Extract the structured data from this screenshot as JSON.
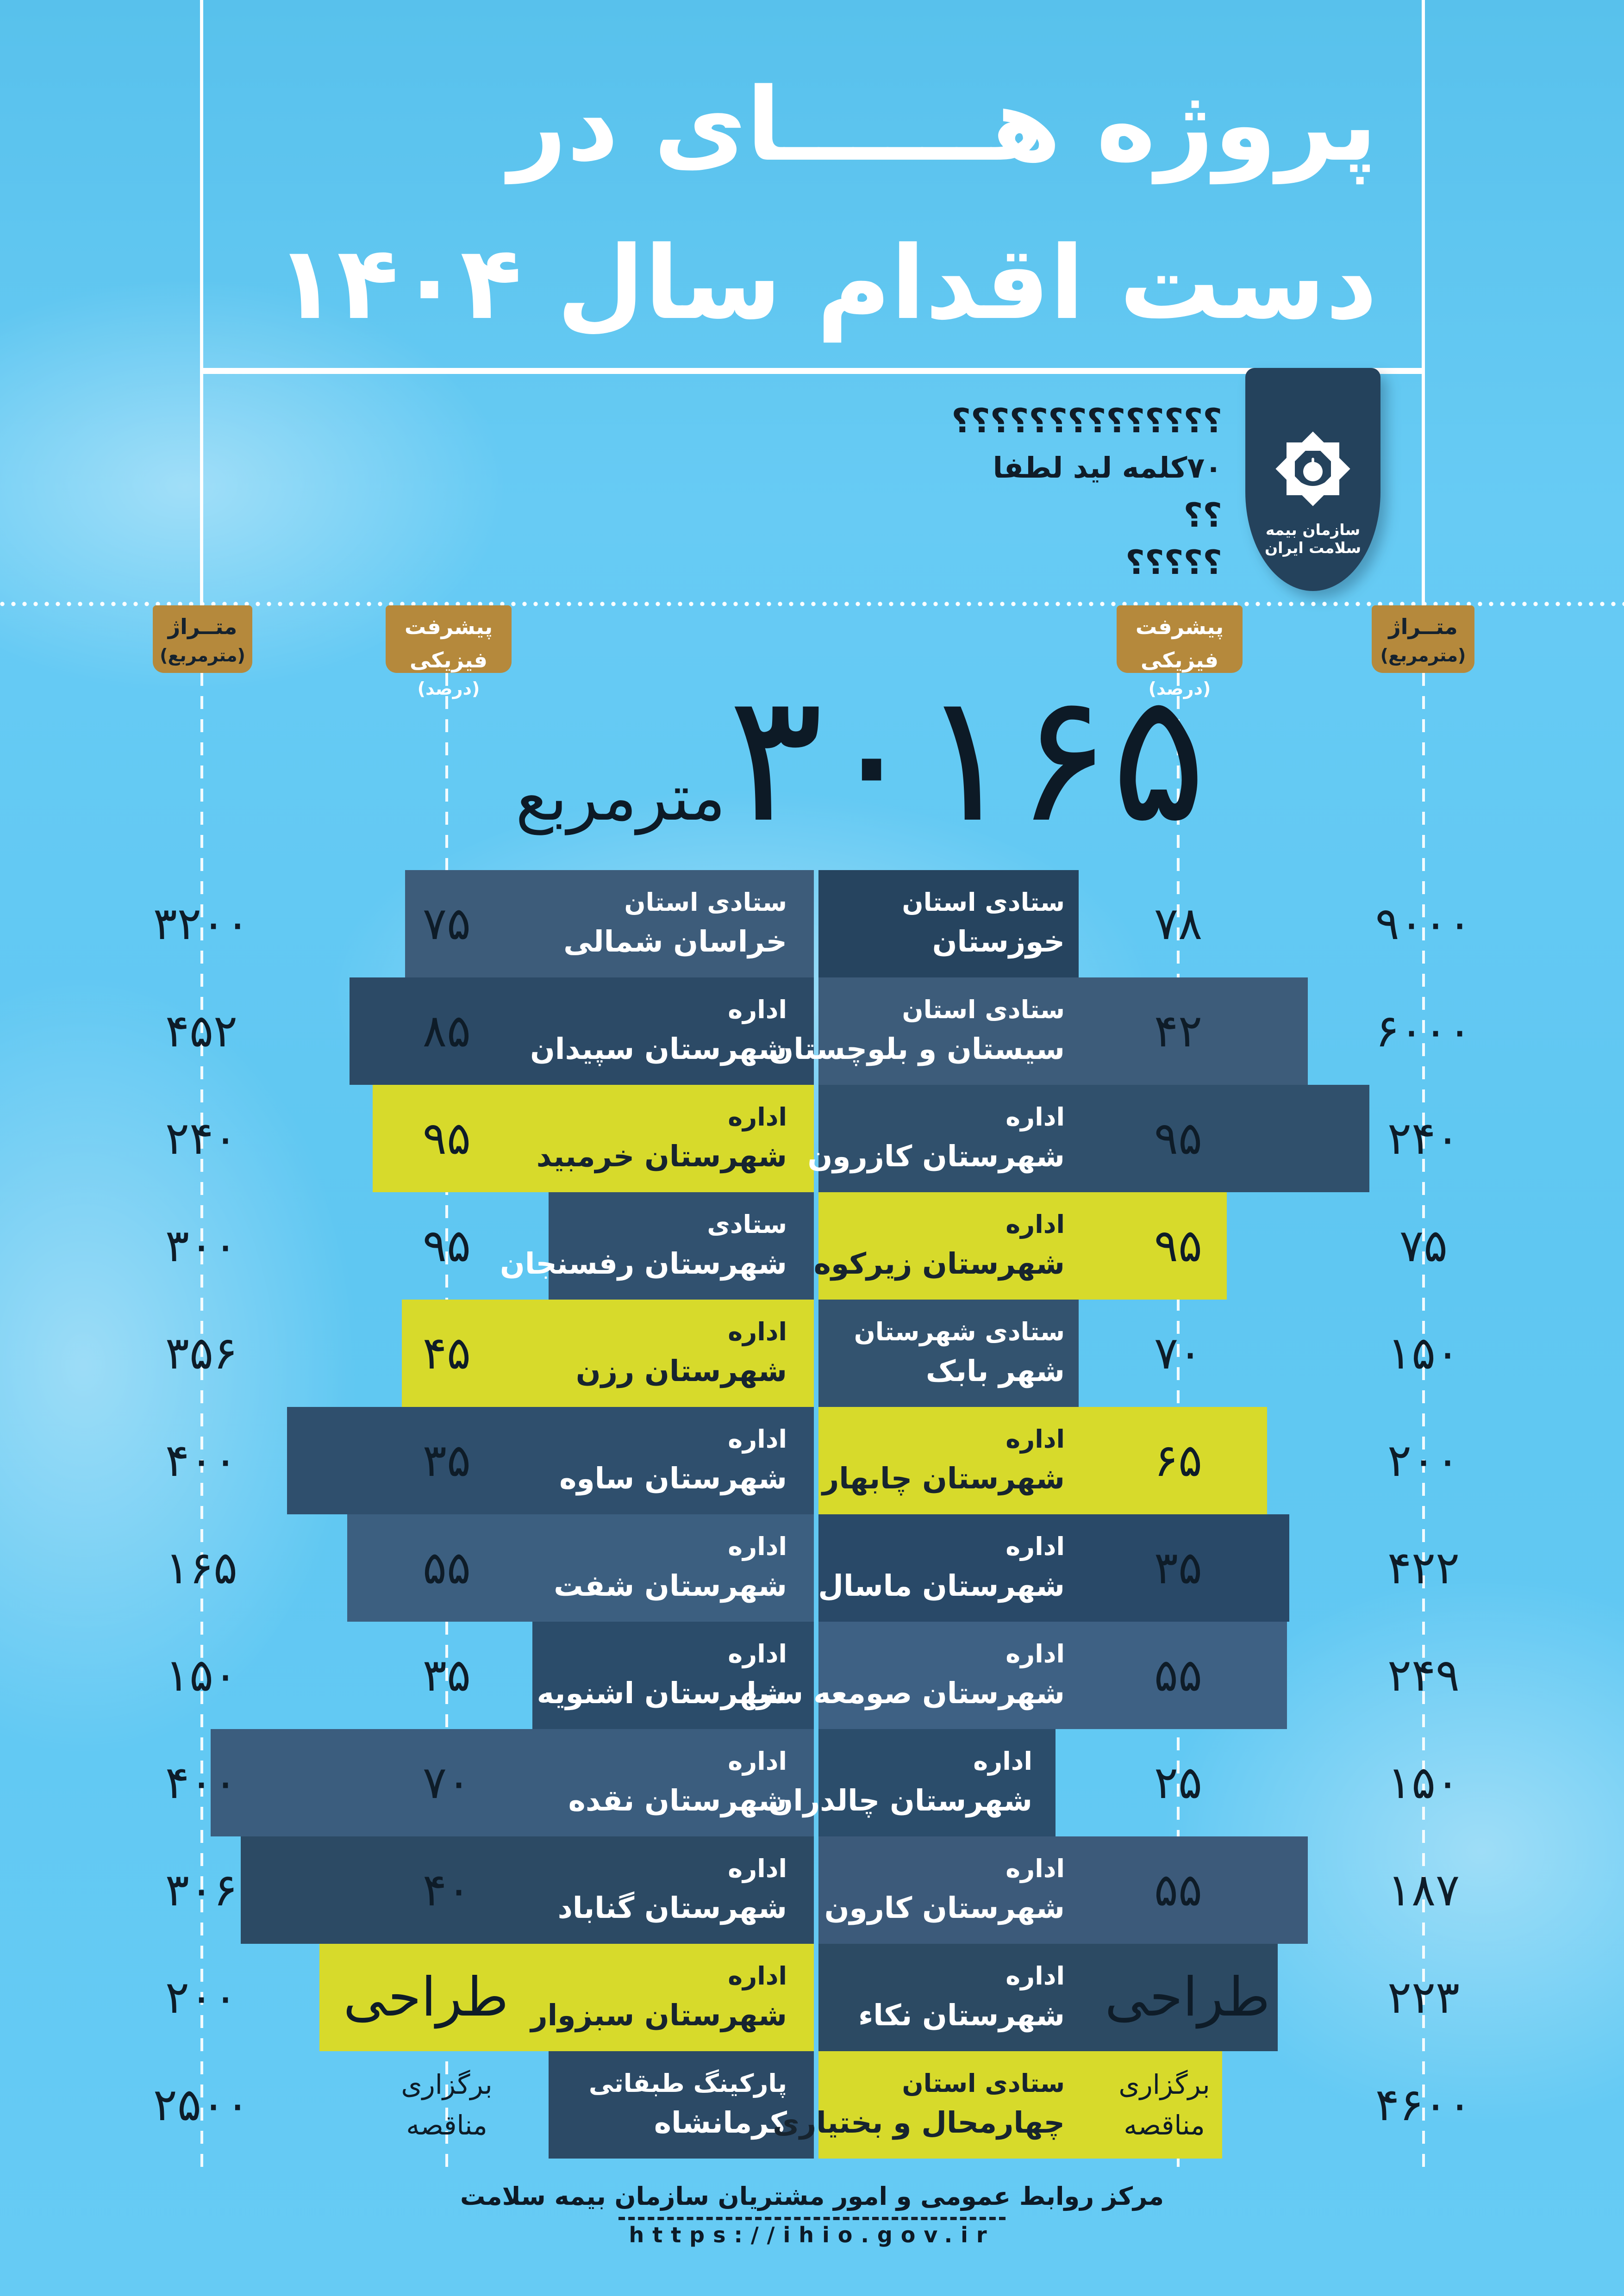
{
  "title": {
    "line1": "پروژه هــــــای در",
    "line2": "دست اقدام سال ۱۴۰۴"
  },
  "logo": {
    "org_name": "سازمان بیمه سلامت ایران"
  },
  "lead_placeholder": {
    "lines": [
      "؟؟؟؟؟؟؟؟؟؟؟؟؟؟",
      "۷۰کلمه لید لطفا",
      "؟؟",
      "؟؟؟؟؟"
    ]
  },
  "column_headers": {
    "area_label": "متــراژ",
    "area_unit": "(مترمربع)",
    "progress_label": "پیشرفت فیزیکی",
    "progress_unit": "(درصد)"
  },
  "total": {
    "value": 30165,
    "value_fa": "۳۰۱۶۵",
    "unit": "مترمربع"
  },
  "colors": {
    "background": "#5fc7f2",
    "gold": "#b5893c",
    "yellow": "#d7da2b",
    "navy_ribbon": "#24425c",
    "text_dark": "#0e1c28",
    "white": "#ffffff"
  },
  "footer": {
    "center_name": "مرکز روابط عمومی و امور مشتریان سازمان بیمه سلامت",
    "url": "https://ihio.gov.ir"
  },
  "chart_data": {
    "type": "bar",
    "title": "پروژه های در دست اقدام سال ۱۴۰۴",
    "total_area_m2": 30165,
    "columns": [
      "متراژ (مترمربع)",
      "پیشرفت فیزیکی (درصد)"
    ],
    "legend_position": "none",
    "rows": [
      {
        "left": {
          "org": "ستادی استان",
          "name": "خراسان شمالی",
          "progress": 75,
          "progress_fa": "۷۵",
          "status_fa": null,
          "area": 3200,
          "area_fa": "۳۲۰۰",
          "color": "#3d5c7a",
          "bar_from": 875
        },
        "right": {
          "org": "ستادی استان",
          "name": "خوزستان",
          "progress": 78,
          "progress_fa": "۷۸",
          "status_fa": null,
          "area": 9000,
          "area_fa": "۹۰۰۰",
          "color": "#26445f",
          "bar_to": 2330
        }
      },
      {
        "left": {
          "org": "اداره",
          "name": "شهرستان سپیدان",
          "progress": 85,
          "progress_fa": "۸۵",
          "status_fa": null,
          "area": 452,
          "area_fa": "۴۵۲",
          "color": "#2c4a66",
          "bar_from": 755
        },
        "right": {
          "org": "ستادی استان",
          "name": "سیستان و بلوچستان",
          "progress": 42,
          "progress_fa": "۴۲",
          "status_fa": null,
          "area": 6000,
          "area_fa": "۶۰۰۰",
          "color": "#3d5c7a",
          "bar_to": 2825
        }
      },
      {
        "left": {
          "org": "اداره",
          "name": "شهرستان خرمبید",
          "progress": 95,
          "progress_fa": "۹۵",
          "status_fa": null,
          "area": 240,
          "area_fa": "۲۴۰",
          "color": "#d7da2b",
          "bar_from": 805
        },
        "right": {
          "org": "اداره",
          "name": "شهرستان کازرون",
          "progress": 95,
          "progress_fa": "۹۵",
          "status_fa": null,
          "area": 240,
          "area_fa": "۲۴۰",
          "color": "#30506c",
          "bar_to": 2958
        }
      },
      {
        "left": {
          "org": "ستادی",
          "name": "شهرستان رفسنجان",
          "progress": 95,
          "progress_fa": "۹۵",
          "status_fa": null,
          "area": 300,
          "area_fa": "۳۰۰",
          "color": "#31516f",
          "bar_from": 1185
        },
        "right": {
          "org": "اداره",
          "name": "شهرستان زیرکوه",
          "progress": 95,
          "progress_fa": "۹۵",
          "status_fa": null,
          "area": 75,
          "area_fa": "۷۵",
          "color": "#d7da2b",
          "bar_to": 2650
        }
      },
      {
        "left": {
          "org": "اداره",
          "name": "شهرستان رزن",
          "progress": 45,
          "progress_fa": "۴۵",
          "status_fa": null,
          "area": 356,
          "area_fa": "۳۵۶",
          "color": "#d7da2b",
          "bar_from": 868
        },
        "right": {
          "org": "ستادی شهرستان",
          "name": "شهر بابک",
          "progress": 70,
          "progress_fa": "۷۰",
          "status_fa": null,
          "area": 150,
          "area_fa": "۱۵۰",
          "color": "#33536f",
          "bar_to": 2330
        }
      },
      {
        "left": {
          "org": "اداره",
          "name": "شهرستان ساوه",
          "progress": 35,
          "progress_fa": "۳۵",
          "status_fa": null,
          "area": 400,
          "area_fa": "۴۰۰",
          "color": "#2f4f6d",
          "bar_from": 620
        },
        "right": {
          "org": "اداره",
          "name": "شهرستان چابهار",
          "progress": 65,
          "progress_fa": "۶۵",
          "status_fa": null,
          "area": 200,
          "area_fa": "۲۰۰",
          "color": "#d7da2b",
          "bar_to": 2737
        }
      },
      {
        "left": {
          "org": "اداره",
          "name": "شهرستان شفت",
          "progress": 55,
          "progress_fa": "۵۵",
          "status_fa": null,
          "area": 165,
          "area_fa": "۱۶۵",
          "color": "#3c5f80",
          "bar_from": 750
        },
        "right": {
          "org": "اداره",
          "name": "شهرستان ماسال",
          "progress": 35,
          "progress_fa": "۳۵",
          "status_fa": null,
          "area": 422,
          "area_fa": "۴۲۲",
          "color": "#294968",
          "bar_to": 2785
        }
      },
      {
        "left": {
          "org": "اداره",
          "name": "شهرستان اشنویه",
          "progress": 35,
          "progress_fa": "۳۵",
          "status_fa": null,
          "area": 150,
          "area_fa": "۱۵۰",
          "color": "#2b4c6a",
          "bar_from": 1150
        },
        "right": {
          "org": "اداره",
          "name": "شهرستان صومعه سرا",
          "progress": 55,
          "progress_fa": "۵۵",
          "status_fa": null,
          "area": 249,
          "area_fa": "۲۴۹",
          "color": "#3e6184",
          "bar_to": 2780
        }
      },
      {
        "left": {
          "org": "اداره",
          "name": "شهرستان نقده",
          "progress": 70,
          "progress_fa": "۷۰",
          "status_fa": null,
          "area": 400,
          "area_fa": "۴۰۰",
          "color": "#3b5d7e",
          "bar_from": 455
        },
        "right": {
          "org": "اداره",
          "name": "شهرستان چالدران",
          "progress": 25,
          "progress_fa": "۲۵",
          "status_fa": null,
          "area": 150,
          "area_fa": "۱۵۰",
          "color": "#2b4d6b",
          "bar_to": 2280,
          "label_edge": 2230
        }
      },
      {
        "left": {
          "org": "اداره",
          "name": "شهرستان گناباد",
          "progress": 40,
          "progress_fa": "۴۰",
          "status_fa": null,
          "area": 306,
          "area_fa": "۳۰۶",
          "color": "#2c4a64",
          "bar_from": 520
        },
        "right": {
          "org": "اداره",
          "name": "شهرستان کارون",
          "progress": 55,
          "progress_fa": "۵۵",
          "status_fa": null,
          "area": 187,
          "area_fa": "۱۸۷",
          "color": "#3c5a7a",
          "bar_to": 2825
        }
      },
      {
        "left": {
          "org": "اداره",
          "name": "شهرستان سبزوار",
          "progress": null,
          "progress_fa": null,
          "status_fa": "طراحی",
          "area": 200,
          "area_fa": "۲۰۰",
          "color": "#d7da2b",
          "bar_from": 690
        },
        "right": {
          "org": "اداره",
          "name": "شهرستان نکاء",
          "progress": null,
          "progress_fa": null,
          "status_fa": "طراحی",
          "area": 223,
          "area_fa": "۲۲۳",
          "color": "#2c4a63",
          "bar_to": 2760
        }
      },
      {
        "left": {
          "org": "پارکینگ طبقاتی",
          "name": "کرمانشاه",
          "progress": null,
          "progress_fa": null,
          "status_fa": [
            "برگزاری",
            "مناقصه"
          ],
          "area": 2500,
          "area_fa": "۲۵۰۰",
          "color": "#2c4a66",
          "bar_from": 1185
        },
        "right": {
          "org": "ستادی استان",
          "name": "چهارمحال و بختیاری",
          "progress": null,
          "progress_fa": null,
          "status_fa": [
            "برگزاری",
            "مناقصه"
          ],
          "area": 4600,
          "area_fa": "۴۶۰۰",
          "color": "#d7da2b",
          "bar_to": 2640
        }
      }
    ]
  }
}
